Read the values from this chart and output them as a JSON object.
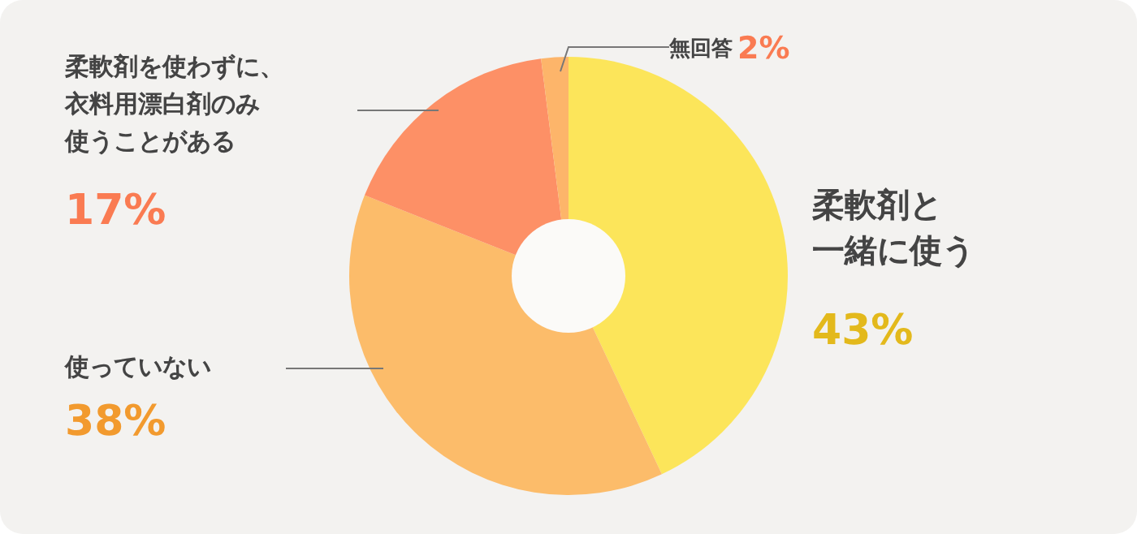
{
  "chart_data": {
    "type": "donut",
    "categories": [
      "柔軟剤と一緒に使う",
      "使っていない",
      "柔軟剤を使わずに、衣料用漂白剤のみ使うことがある",
      "無回答"
    ],
    "values": [
      43,
      38,
      17,
      2
    ],
    "value_labels": [
      "43%",
      "38%",
      "17%",
      "2%"
    ],
    "colors": [
      "#fce55a",
      "#fcbc6a",
      "#fd9066",
      "#fdb56a"
    ]
  }
}
